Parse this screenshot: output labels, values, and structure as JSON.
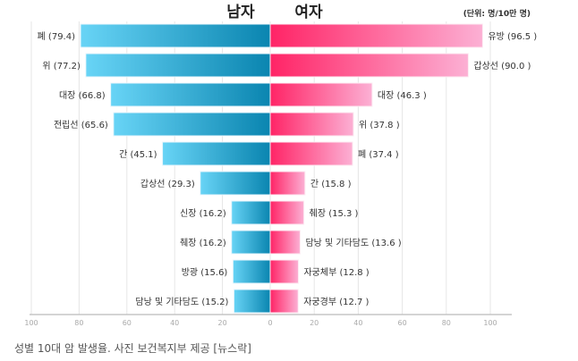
{
  "chart_data": {
    "type": "bar",
    "title_left": "남자",
    "title_right": "여자",
    "unit": "(단위: 명/10만 명)",
    "caption": "성별 10대 암 발생율. 사진 보건복지부 제공 [뉴스락]",
    "xlim": [
      0,
      100
    ],
    "ticks": [
      "100",
      "80",
      "60",
      "40",
      "20",
      "0",
      "20",
      "40",
      "60",
      "80",
      "100"
    ],
    "series": [
      {
        "name": "남자",
        "color_start": "#68d4f6",
        "color_end": "#0a85b0",
        "categories": [
          "폐",
          "위",
          "대장",
          "전립선",
          "간",
          "갑상선",
          "신장",
          "췌장",
          "방광",
          "담낭 및 기타담도"
        ],
        "values": [
          79.4,
          77.2,
          66.8,
          65.6,
          45.1,
          29.3,
          16.2,
          16.2,
          15.6,
          15.2
        ],
        "labels": [
          "폐 (79.4)",
          "위 (77.2)",
          "대장 (66.8)",
          "전립선 (65.6)",
          "간 (45.1)",
          "갑상선 (29.3)",
          "신장 (16.2)",
          "췌장 (16.2)",
          "방광 (15.6)",
          "담낭 및 기타담도 (15.2)"
        ]
      },
      {
        "name": "여자",
        "color_start": "#ff2466",
        "color_end": "#fcb0d4",
        "categories": [
          "유방",
          "갑상선",
          "대장",
          "위",
          "폐",
          "간",
          "췌장",
          "담낭 및 기타담도",
          "자궁체부",
          "자궁경부"
        ],
        "values": [
          96.5,
          90.0,
          46.3,
          37.8,
          37.4,
          15.8,
          15.3,
          13.6,
          12.8,
          12.7
        ],
        "labels": [
          "유방 (96.5 )",
          "갑상선 (90.0 )",
          "대장 (46.3 )",
          "위 (37.8 )",
          "폐 (37.4 )",
          "간 (15.8 )",
          "췌장 (15.3 )",
          "담낭 및 기타담도 (13.6 )",
          "자궁체부 (12.8 )",
          "자궁경부 (12.7 )"
        ]
      }
    ]
  }
}
